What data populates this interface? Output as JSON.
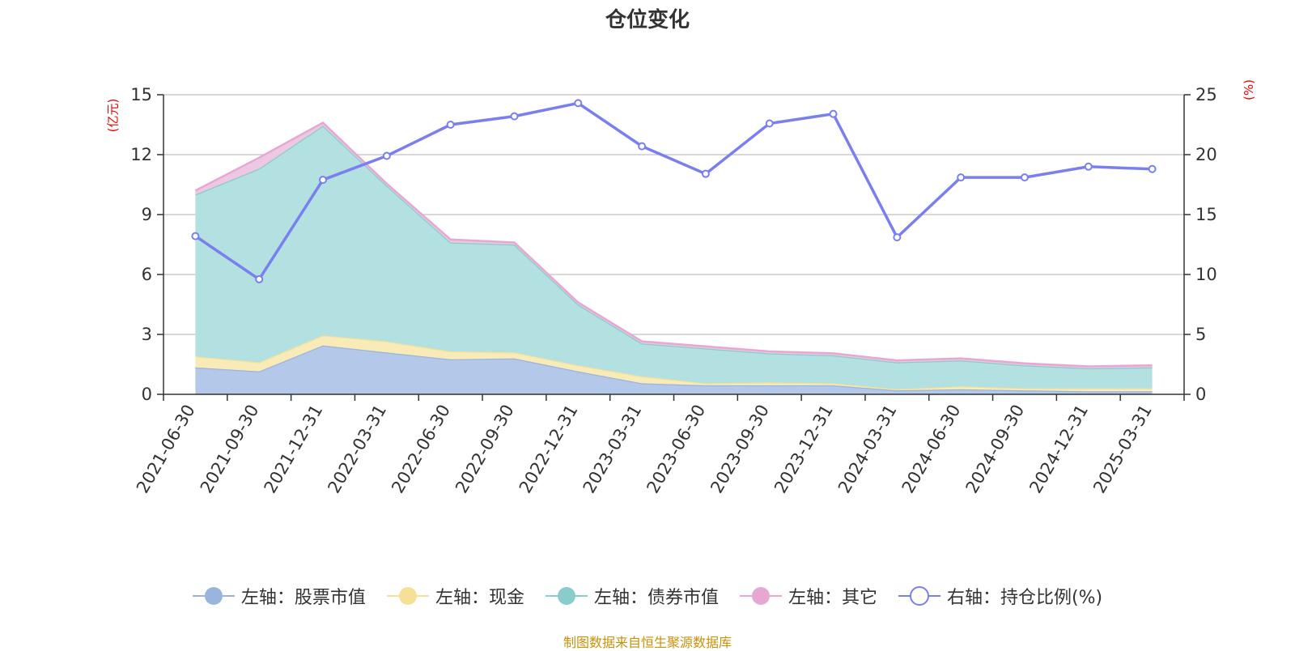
{
  "chart_data": {
    "type": "area",
    "title": "仓位变化",
    "y_left_label": "(亿元)",
    "y_right_label": "(%)",
    "y_left_lim": [
      0,
      15
    ],
    "y_left_ticks": [
      0,
      3,
      6,
      9,
      12,
      15
    ],
    "y_right_lim": [
      0,
      25
    ],
    "y_right_ticks": [
      0,
      5,
      10,
      15,
      20,
      25
    ],
    "grid": true,
    "legend_position": "bottom",
    "categories": [
      "2021-06-30",
      "2021-09-30",
      "2021-12-31",
      "2022-03-31",
      "2022-06-30",
      "2022-09-30",
      "2022-12-31",
      "2023-03-31",
      "2023-06-30",
      "2023-09-30",
      "2023-12-31",
      "2024-03-31",
      "2024-06-30",
      "2024-09-30",
      "2024-12-31",
      "2025-03-31"
    ],
    "series": [
      {
        "name": "左轴：股票市值",
        "axis": "left",
        "type": "area",
        "color": "#9ab4e0",
        "fill": "#b4c8ea",
        "values": [
          1.35,
          1.15,
          2.45,
          2.1,
          1.75,
          1.8,
          1.15,
          0.55,
          0.45,
          0.45,
          0.45,
          0.2,
          0.25,
          0.2,
          0.15,
          0.15
        ]
      },
      {
        "name": "左轴：现金",
        "axis": "left",
        "type": "area",
        "color": "#f5e196",
        "fill": "#f8ebb8",
        "values": [
          0.55,
          0.45,
          0.5,
          0.55,
          0.4,
          0.3,
          0.3,
          0.35,
          0.1,
          0.15,
          0.1,
          0.05,
          0.15,
          0.1,
          0.15,
          0.15
        ]
      },
      {
        "name": "左轴：债券市值",
        "axis": "left",
        "type": "area",
        "color": "#88cccc",
        "fill": "#b3e0e0",
        "values": [
          8.1,
          9.7,
          10.5,
          7.8,
          5.45,
          5.4,
          3.05,
          1.65,
          1.75,
          1.45,
          1.4,
          1.35,
          1.3,
          1.15,
          1.0,
          1.05
        ]
      },
      {
        "name": "左轴：其它",
        "axis": "left",
        "type": "area",
        "color": "#e6a8d2",
        "fill": "#eec8e2",
        "values": [
          0.2,
          0.55,
          0.15,
          0.1,
          0.15,
          0.1,
          0.1,
          0.1,
          0.1,
          0.1,
          0.1,
          0.1,
          0.1,
          0.1,
          0.1,
          0.1
        ]
      },
      {
        "name": "右轴：持仓比例(%)",
        "axis": "right",
        "type": "line",
        "color": "#7a7ff0",
        "values": [
          13.2,
          9.6,
          17.9,
          19.9,
          22.5,
          23.2,
          24.3,
          20.7,
          18.4,
          22.6,
          23.4,
          13.1,
          18.1,
          18.1,
          19.0,
          18.8
        ]
      }
    ]
  },
  "source_note": "制图数据来自恒生聚源数据库"
}
